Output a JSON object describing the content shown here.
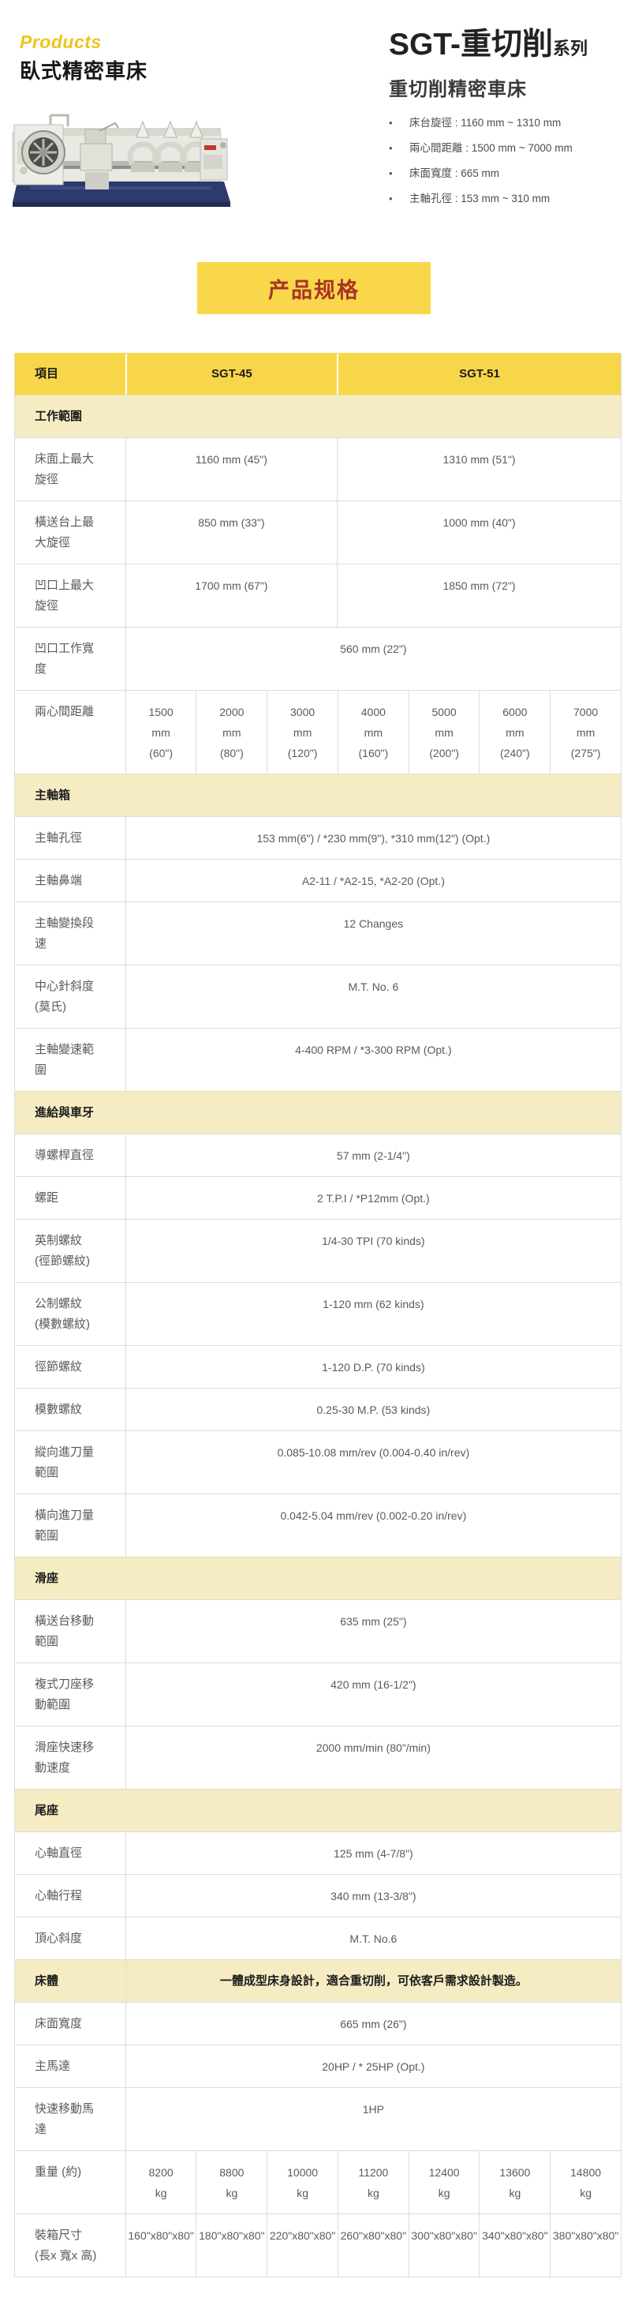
{
  "header": {
    "products_label": "Products",
    "category": "臥式精密車床",
    "series_title": "SGT-重切削",
    "series_suffix": "系列",
    "subtitle": "重切削精密車床",
    "bullet_icon": "•",
    "bullets": [
      "床台旋徑 : 1160 mm ~ 1310 mm",
      "兩心間距離 : 1500 mm ~ 7000 mm",
      "床面寬度 : 665 mm",
      "主軸孔徑 : 153 mm ~ 310 mm"
    ]
  },
  "spec_button_label": "产品规格",
  "colors": {
    "accent_yellow": "#f8d64a",
    "section_cream": "#f6ecc3",
    "button_yellow": "#f8d84a",
    "button_text_red": "#a93327",
    "products_gold": "#eec41e",
    "table_border": "#dcdcdc",
    "body_text": "#5a5a5a",
    "machine_base_navy": "#2e3a6e",
    "machine_decal_red": "#c0392b"
  },
  "table": {
    "header": {
      "item": "項目",
      "col1": "SGT-45",
      "col2": "SGT-51"
    },
    "rows": [
      {
        "type": "section",
        "label": "工作範圍"
      },
      {
        "type": "data2",
        "label": "床面上最大\n旋徑",
        "v1": "1160 mm (45\")",
        "v2": "1310 mm (51\")"
      },
      {
        "type": "data2",
        "label": "橫送台上最\n大旋徑",
        "v1": "850 mm (33\")",
        "v2": "1000 mm (40\")"
      },
      {
        "type": "data2",
        "label": "凹口上最大\n旋徑",
        "v1": "1700 mm (67\")",
        "v2": "1850 mm (72\")"
      },
      {
        "type": "span",
        "label": "凹口工作寬\n度",
        "value": "560 mm (22\")"
      },
      {
        "type": "data7",
        "label": "兩心間距離",
        "values": [
          "1500\nmm\n(60\")",
          "2000\nmm\n(80\")",
          "3000\nmm\n(120\")",
          "4000\nmm\n(160\")",
          "5000\nmm\n(200\")",
          "6000\nmm\n(240\")",
          "7000\nmm\n(275\")"
        ]
      },
      {
        "type": "section",
        "label": "主軸箱"
      },
      {
        "type": "span",
        "label": "主軸孔徑",
        "value": "153 mm(6\") / *230 mm(9\"), *310 mm(12\") (Opt.)"
      },
      {
        "type": "span",
        "label": "主軸鼻端",
        "value": "A2-11 / *A2-15, *A2-20 (Opt.)"
      },
      {
        "type": "span",
        "label": "主軸變換段\n速",
        "value": "12 Changes"
      },
      {
        "type": "span",
        "label": "中心針斜度\n(莫氏)",
        "value": "M.T. No. 6"
      },
      {
        "type": "span",
        "label": "主軸變速範\n圍",
        "value": "4-400 RPM / *3-300 RPM (Opt.)"
      },
      {
        "type": "section",
        "label": "進給與車牙"
      },
      {
        "type": "span",
        "label": "導螺桿直徑",
        "value": "57 mm (2-1/4\")"
      },
      {
        "type": "span",
        "label": "螺距",
        "value": "2 T.P.I / *P12mm (Opt.)"
      },
      {
        "type": "span",
        "label": "英制螺紋\n(徑節螺紋)",
        "value": "1/4-30 TPI (70 kinds)"
      },
      {
        "type": "span",
        "label": "公制螺紋\n(模數螺紋)",
        "value": "1-120 mm (62 kinds)"
      },
      {
        "type": "span",
        "label": "徑節螺紋",
        "value": "1-120 D.P. (70 kinds)"
      },
      {
        "type": "span",
        "label": "模數螺紋",
        "value": "0.25-30 M.P. (53 kinds)"
      },
      {
        "type": "span",
        "label": "縱向進刀量\n範圍",
        "value": "0.085-10.08 mm/rev (0.004-0.40 in/rev)"
      },
      {
        "type": "span",
        "label": "橫向進刀量\n範圍",
        "value": "0.042-5.04 mm/rev (0.002-0.20 in/rev)"
      },
      {
        "type": "section",
        "label": "滑座"
      },
      {
        "type": "span",
        "label": "橫送台移動\n範圍",
        "value": "635 mm (25\")"
      },
      {
        "type": "span",
        "label": "複式刀座移\n動範圍",
        "value": "420 mm (16-1/2\")"
      },
      {
        "type": "span",
        "label": "滑座快速移\n動速度",
        "value": "2000 mm/min (80\"/min)"
      },
      {
        "type": "section",
        "label": "尾座"
      },
      {
        "type": "span",
        "label": "心軸直徑",
        "value": "125 mm (4-7/8\")"
      },
      {
        "type": "span",
        "label": "心軸行程",
        "value": "340 mm (13-3/8\")"
      },
      {
        "type": "span",
        "label": "頂心斜度",
        "value": "M.T. No.6"
      },
      {
        "type": "section_desc",
        "label": "床體",
        "desc": "一體成型床身設計，適合重切削，可依客戶需求設計製造。"
      },
      {
        "type": "span",
        "label": "床面寬度",
        "value": "665 mm (26\")"
      },
      {
        "type": "span",
        "label": "主馬達",
        "value": "20HP / * 25HP (Opt.)"
      },
      {
        "type": "span",
        "label": "快速移動馬\n達",
        "value": "1HP"
      },
      {
        "type": "data7",
        "label": "重量 (約)",
        "values": [
          "8200\nkg",
          "8800\nkg",
          "10000\nkg",
          "11200\nkg",
          "12400\nkg",
          "13600\nkg",
          "14800\nkg"
        ]
      },
      {
        "type": "data7",
        "label": "裝箱尺寸\n(長x 寬x 高)",
        "values": [
          "160\"x80\"x80\"",
          "180\"x80\"x80\"",
          "220\"x80\"x80\"",
          "260\"x80\"x80\"",
          "300\"x80\"x80\"",
          "340\"x80\"x80\"",
          "380\"x80\"x80\""
        ]
      }
    ]
  }
}
